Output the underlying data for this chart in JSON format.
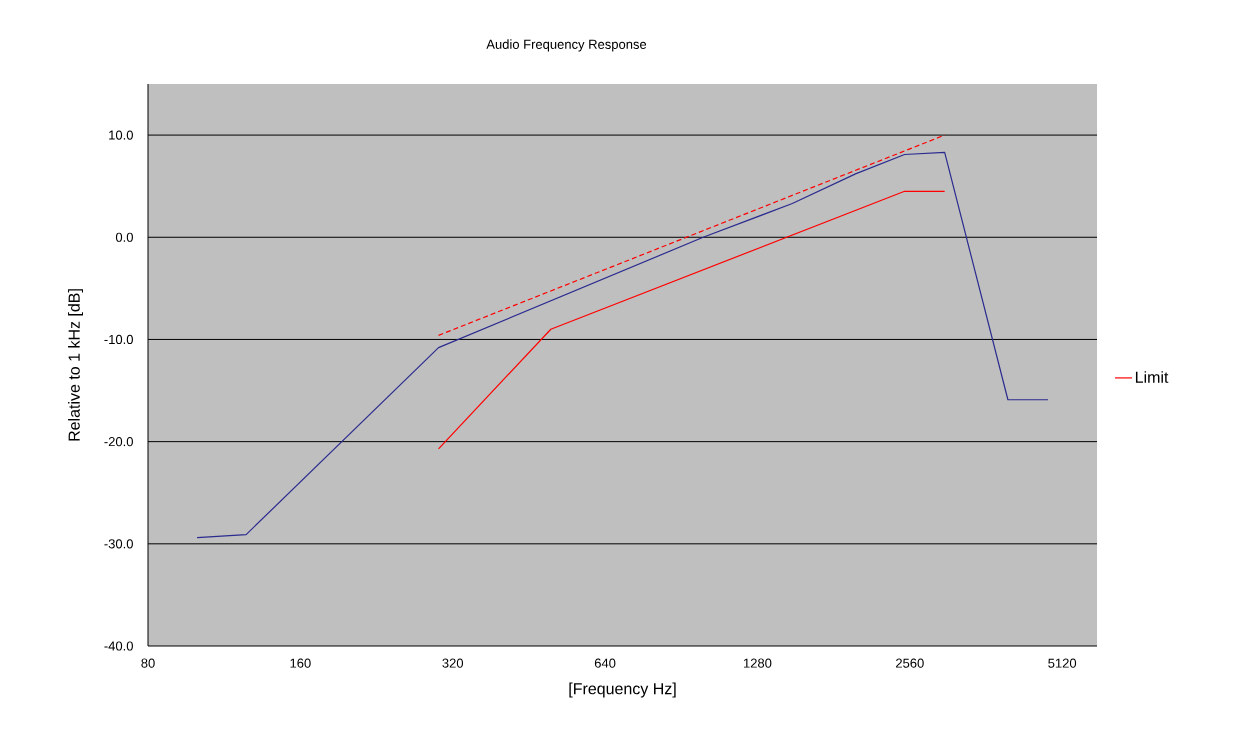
{
  "chart_data": {
    "type": "line",
    "title": "Audio Frequency Response",
    "xlabel": "[Frequency Hz]",
    "ylabel": "Relative to 1 kHz [dB]",
    "log": "x",
    "xlim": [
      80,
      6000
    ],
    "xticks": [
      80,
      160,
      320,
      640,
      1280,
      2560,
      5120
    ],
    "ylim": [
      -40,
      15
    ],
    "yticks": [
      {
        "value": -40,
        "label": "-40.0"
      },
      {
        "value": -30,
        "label": "-30.0"
      },
      {
        "value": -20,
        "label": "-20.0"
      },
      {
        "value": -10,
        "label": "-10.0"
      },
      {
        "value": 0,
        "label": "0.0"
      },
      {
        "value": 10,
        "label": "10.0"
      }
    ],
    "grid": "y",
    "legend": "right",
    "marker": "none",
    "series": [
      {
        "color": "#2b2b8f",
        "line_style": "solid",
        "x": [
          100,
          125,
          300,
          1000,
          1500,
          2000,
          2500,
          3000,
          4000,
          4800
        ],
        "values": [
          -29.4,
          -29.1,
          -10.8,
          0,
          3.3,
          6.2,
          8.1,
          8.3,
          -15.9,
          -15.9
        ]
      },
      {
        "color": "#ff0000",
        "line_style": "dashed",
        "x": [
          300,
          3000
        ],
        "values": [
          -9.6,
          10
        ]
      },
      {
        "name": "Limit",
        "color": "#ff0000",
        "line_style": "solid",
        "x": [
          300,
          500,
          2500,
          3000
        ],
        "values": [
          -20.7,
          -9,
          4.5,
          4.5
        ]
      }
    ]
  }
}
